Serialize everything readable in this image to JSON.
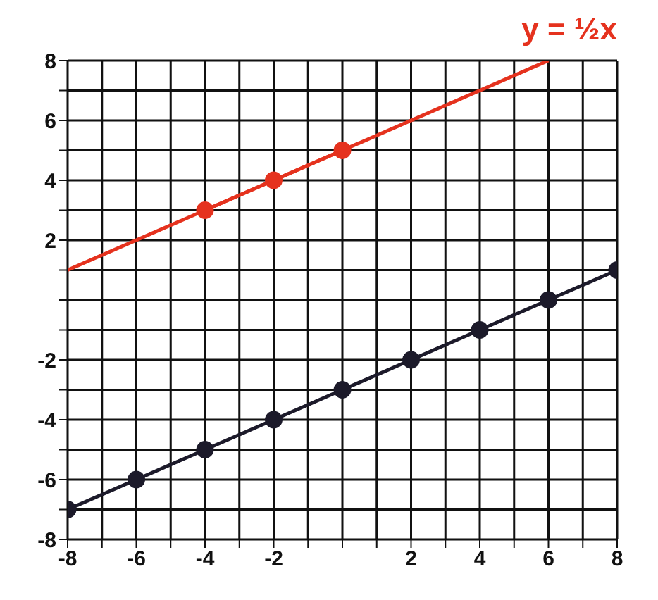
{
  "chart_data": {
    "type": "line",
    "annotations": [
      "y = ½x"
    ],
    "series": [
      {
        "color": "#e5321e",
        "x": [
          -4,
          -2,
          0
        ],
        "values": [
          3,
          4,
          5
        ],
        "marker": "circle"
      },
      {
        "color": "#e5321e",
        "x": [
          -8,
          6
        ],
        "values": [
          1,
          8
        ],
        "marker": "none"
      },
      {
        "color": "#1c1a2a",
        "x": [
          -8,
          -6,
          -4,
          -2,
          0,
          2,
          4,
          6,
          8
        ],
        "values": [
          -7,
          -6,
          -5,
          -4,
          -3,
          -2,
          -1,
          0,
          1
        ],
        "marker": "circle"
      }
    ],
    "xlim": [
      -8,
      8
    ],
    "ylim": [
      -8,
      8
    ],
    "xticks": [
      -8,
      {
        "value": -7,
        "label": null
      },
      -6,
      {
        "value": -5,
        "label": null
      },
      -4,
      {
        "value": -3,
        "label": null
      },
      -2,
      {
        "value": -1,
        "label": null
      },
      {
        "value": 0,
        "label": null
      },
      {
        "value": 1,
        "label": null
      },
      2,
      {
        "value": 3,
        "label": null
      },
      4,
      {
        "value": 5,
        "label": null
      },
      6,
      {
        "value": 7,
        "label": null
      },
      8
    ],
    "yticks": [
      -8,
      {
        "value": -7,
        "label": null
      },
      -6,
      {
        "value": -5,
        "label": null
      },
      -4,
      {
        "value": -3,
        "label": null
      },
      -2,
      {
        "value": -1,
        "label": null
      },
      {
        "value": 0,
        "label": null
      },
      {
        "value": 1,
        "label": null
      },
      2,
      {
        "value": 3,
        "label": null
      },
      4,
      {
        "value": 5,
        "label": null
      },
      6,
      {
        "value": 7,
        "label": null
      },
      8
    ],
    "grid": true
  }
}
